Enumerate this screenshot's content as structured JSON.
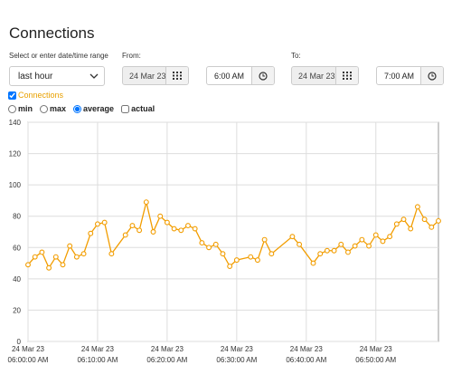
{
  "header": {
    "title": "Connections"
  },
  "form": {
    "range_label": "Select or enter date/time range",
    "range_value": "last hour",
    "from_label": "From:",
    "from_date": "24 Mar 23",
    "from_time": "6:00 AM",
    "to_label": "To:",
    "to_date": "24 Mar 23",
    "to_time": "7:00 AM"
  },
  "series_toggle": {
    "label": "Connections",
    "checked": true
  },
  "aggregation": {
    "options": [
      "min",
      "max",
      "average"
    ],
    "selected": "average"
  },
  "actual": {
    "label": "actual",
    "checked": false
  },
  "chart_data": {
    "type": "line",
    "color": "#f29d00",
    "grid": true,
    "x": [
      "24 Mar 23 06:00:00 AM",
      "24 Mar 23 06:01:00 AM",
      "24 Mar 23 06:02:00 AM",
      "24 Mar 23 06:03:00 AM",
      "24 Mar 23 06:04:00 AM",
      "24 Mar 23 06:05:00 AM",
      "24 Mar 23 06:06:00 AM",
      "24 Mar 23 06:07:00 AM",
      "24 Mar 23 06:08:00 AM",
      "24 Mar 23 06:09:00 AM",
      "24 Mar 23 06:10:00 AM",
      "24 Mar 23 06:11:00 AM",
      "24 Mar 23 06:12:00 AM",
      "24 Mar 23 06:14:00 AM",
      "24 Mar 23 06:15:00 AM",
      "24 Mar 23 06:16:00 AM",
      "24 Mar 23 06:17:00 AM",
      "24 Mar 23 06:18:00 AM",
      "24 Mar 23 06:19:00 AM",
      "24 Mar 23 06:20:00 AM",
      "24 Mar 23 06:21:00 AM",
      "24 Mar 23 06:22:00 AM",
      "24 Mar 23 06:23:00 AM",
      "24 Mar 23 06:24:00 AM",
      "24 Mar 23 06:25:00 AM",
      "24 Mar 23 06:26:00 AM",
      "24 Mar 23 06:27:00 AM",
      "24 Mar 23 06:28:00 AM",
      "24 Mar 23 06:29:00 AM",
      "24 Mar 23 06:30:00 AM",
      "24 Mar 23 06:32:00 AM",
      "24 Mar 23 06:33:00 AM",
      "24 Mar 23 06:34:00 AM",
      "24 Mar 23 06:35:00 AM",
      "24 Mar 23 06:38:00 AM",
      "24 Mar 23 06:39:00 AM",
      "24 Mar 23 06:41:00 AM",
      "24 Mar 23 06:42:00 AM",
      "24 Mar 23 06:43:00 AM",
      "24 Mar 23 06:44:00 AM",
      "24 Mar 23 06:45:00 AM",
      "24 Mar 23 06:46:00 AM",
      "24 Mar 23 06:47:00 AM",
      "24 Mar 23 06:48:00 AM",
      "24 Mar 23 06:49:00 AM",
      "24 Mar 23 06:50:00 AM",
      "24 Mar 23 06:51:00 AM",
      "24 Mar 23 06:52:00 AM",
      "24 Mar 23 06:53:00 AM",
      "24 Mar 23 06:54:00 AM",
      "24 Mar 23 06:55:00 AM",
      "24 Mar 23 06:56:00 AM",
      "24 Mar 23 06:57:00 AM",
      "24 Mar 23 06:58:00 AM",
      "24 Mar 23 06:59:00 AM"
    ],
    "values": [
      49,
      54,
      57,
      47,
      54,
      49,
      61,
      54,
      56,
      69,
      75,
      76,
      56,
      68,
      74,
      71,
      89,
      70,
      80,
      76,
      72,
      71,
      74,
      72,
      63,
      60,
      62,
      56,
      48,
      52,
      54,
      52,
      65,
      56,
      67,
      62,
      50,
      56,
      58,
      58,
      62,
      57,
      61,
      65,
      61,
      68,
      64,
      67,
      75,
      78,
      72,
      86,
      78,
      73,
      77
    ],
    "xlim": [
      "24 Mar 23 06:00:00 AM",
      "24 Mar 23 06:59:00 AM"
    ],
    "xticks": [
      {
        "value": "24 Mar 23 06:00:00 AM",
        "label": [
          "24 Mar 23",
          "06:00:00 AM"
        ]
      },
      {
        "value": "24 Mar 23 06:10:00 AM",
        "label": [
          "24 Mar 23",
          "06:10:00 AM"
        ]
      },
      {
        "value": "24 Mar 23 06:20:00 AM",
        "label": [
          "24 Mar 23",
          "06:20:00 AM"
        ]
      },
      {
        "value": "24 Mar 23 06:30:00 AM",
        "label": [
          "24 Mar 23",
          "06:30:00 AM"
        ]
      },
      {
        "value": "24 Mar 23 06:40:00 AM",
        "label": [
          "24 Mar 23",
          "06:40:00 AM"
        ]
      },
      {
        "value": "24 Mar 23 06:50:00 AM",
        "label": [
          "24 Mar 23",
          "06:50:00 AM"
        ]
      }
    ],
    "ylim": [
      0,
      140
    ],
    "yticks": [
      0,
      20,
      40,
      60,
      80,
      100,
      120,
      140
    ]
  }
}
